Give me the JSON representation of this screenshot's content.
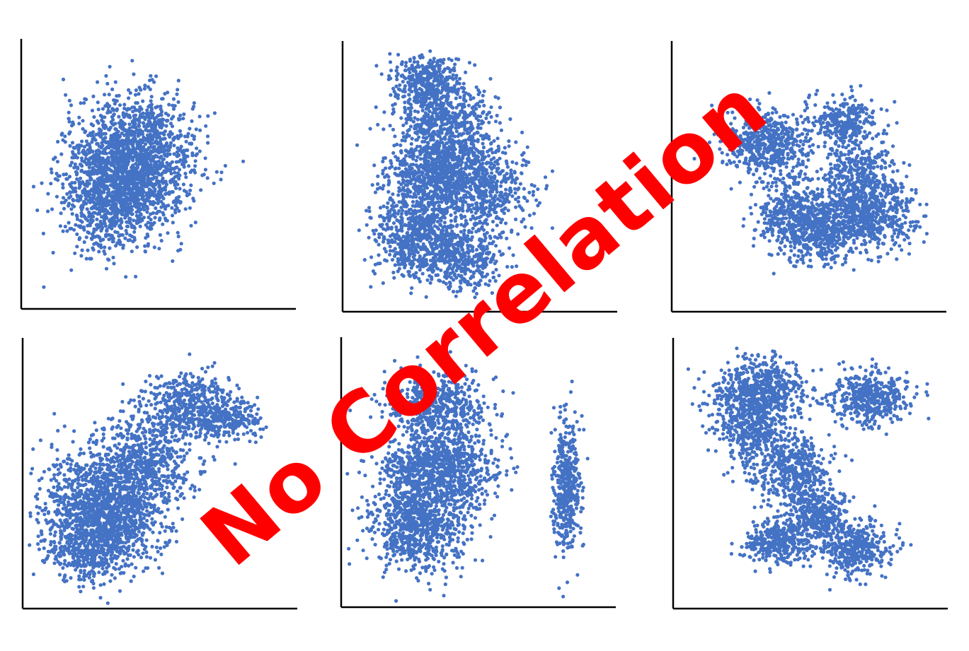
{
  "overlay_text": "No Correlation",
  "colors": {
    "point": "#4472C4",
    "axis": "#000000",
    "overlay": "#ff0000"
  },
  "chart_data": [
    {
      "type": "scatter",
      "panel": "top-left",
      "x_range": [
        0,
        100
      ],
      "y_range": [
        0,
        100
      ],
      "clusters": [
        {
          "cx": 38,
          "cy": 50,
          "sx": 11,
          "sy": 12,
          "n": 1400
        },
        {
          "cx": 45,
          "cy": 62,
          "sx": 10,
          "sy": 9,
          "n": 500
        },
        {
          "cx": 30,
          "cy": 38,
          "sx": 8,
          "sy": 9,
          "n": 400
        }
      ]
    },
    {
      "type": "scatter",
      "panel": "top-center",
      "x_range": [
        0,
        100
      ],
      "y_range": [
        0,
        100
      ],
      "clusters": [
        {
          "cx": 30,
          "cy": 85,
          "sx": 6,
          "sy": 5,
          "n": 350
        },
        {
          "cx": 38,
          "cy": 72,
          "sx": 8,
          "sy": 6,
          "n": 450
        },
        {
          "cx": 34,
          "cy": 52,
          "sx": 9,
          "sy": 8,
          "n": 900
        },
        {
          "cx": 28,
          "cy": 28,
          "sx": 8,
          "sy": 8,
          "n": 700
        },
        {
          "cx": 52,
          "cy": 46,
          "sx": 8,
          "sy": 8,
          "n": 500
        },
        {
          "cx": 45,
          "cy": 20,
          "sx": 7,
          "sy": 6,
          "n": 350
        }
      ]
    },
    {
      "type": "scatter",
      "panel": "top-right",
      "x_range": [
        0,
        100
      ],
      "y_range": [
        0,
        100
      ],
      "clusters": [
        {
          "cx": 35,
          "cy": 62,
          "sx": 8,
          "sy": 6,
          "n": 550
        },
        {
          "cx": 62,
          "cy": 70,
          "sx": 6,
          "sy": 5,
          "n": 300
        },
        {
          "cx": 68,
          "cy": 50,
          "sx": 7,
          "sy": 6,
          "n": 350
        },
        {
          "cx": 45,
          "cy": 35,
          "sx": 7,
          "sy": 7,
          "n": 500
        },
        {
          "cx": 72,
          "cy": 35,
          "sx": 8,
          "sy": 6,
          "n": 550
        },
        {
          "cx": 56,
          "cy": 28,
          "sx": 6,
          "sy": 5,
          "n": 300
        }
      ]
    },
    {
      "type": "scatter",
      "panel": "bottom-left",
      "x_range": [
        0,
        100
      ],
      "y_range": [
        0,
        100
      ],
      "clusters": [
        {
          "cx": 30,
          "cy": 38,
          "sx": 11,
          "sy": 11,
          "n": 1400
        },
        {
          "cx": 45,
          "cy": 55,
          "sx": 9,
          "sy": 8,
          "n": 500
        },
        {
          "cx": 60,
          "cy": 75,
          "sx": 8,
          "sy": 6,
          "n": 450
        },
        {
          "cx": 75,
          "cy": 70,
          "sx": 6,
          "sy": 4,
          "n": 250
        },
        {
          "cx": 25,
          "cy": 22,
          "sx": 8,
          "sy": 6,
          "n": 400
        }
      ]
    },
    {
      "type": "scatter",
      "panel": "bottom-center",
      "x_range": [
        0,
        100
      ],
      "y_range": [
        0,
        100
      ],
      "clusters": [
        {
          "cx": 35,
          "cy": 75,
          "sx": 9,
          "sy": 6,
          "n": 500
        },
        {
          "cx": 35,
          "cy": 52,
          "sx": 10,
          "sy": 8,
          "n": 1000
        },
        {
          "cx": 28,
          "cy": 30,
          "sx": 9,
          "sy": 8,
          "n": 800
        },
        {
          "cx": 82,
          "cy": 45,
          "sx": 2.5,
          "sy": 12,
          "n": 450
        }
      ]
    },
    {
      "type": "scatter",
      "panel": "bottom-right",
      "x_range": [
        0,
        100
      ],
      "y_range": [
        0,
        100
      ],
      "clusters": [
        {
          "cx": 32,
          "cy": 80,
          "sx": 8,
          "sy": 6,
          "n": 600
        },
        {
          "cx": 28,
          "cy": 65,
          "sx": 6,
          "sy": 7,
          "n": 400
        },
        {
          "cx": 72,
          "cy": 78,
          "sx": 7,
          "sy": 5,
          "n": 450
        },
        {
          "cx": 44,
          "cy": 52,
          "sx": 6,
          "sy": 6,
          "n": 400
        },
        {
          "cx": 52,
          "cy": 35,
          "sx": 6,
          "sy": 5,
          "n": 400
        },
        {
          "cx": 38,
          "cy": 25,
          "sx": 6,
          "sy": 4,
          "n": 350
        },
        {
          "cx": 66,
          "cy": 22,
          "sx": 7,
          "sy": 5,
          "n": 400
        }
      ]
    }
  ]
}
